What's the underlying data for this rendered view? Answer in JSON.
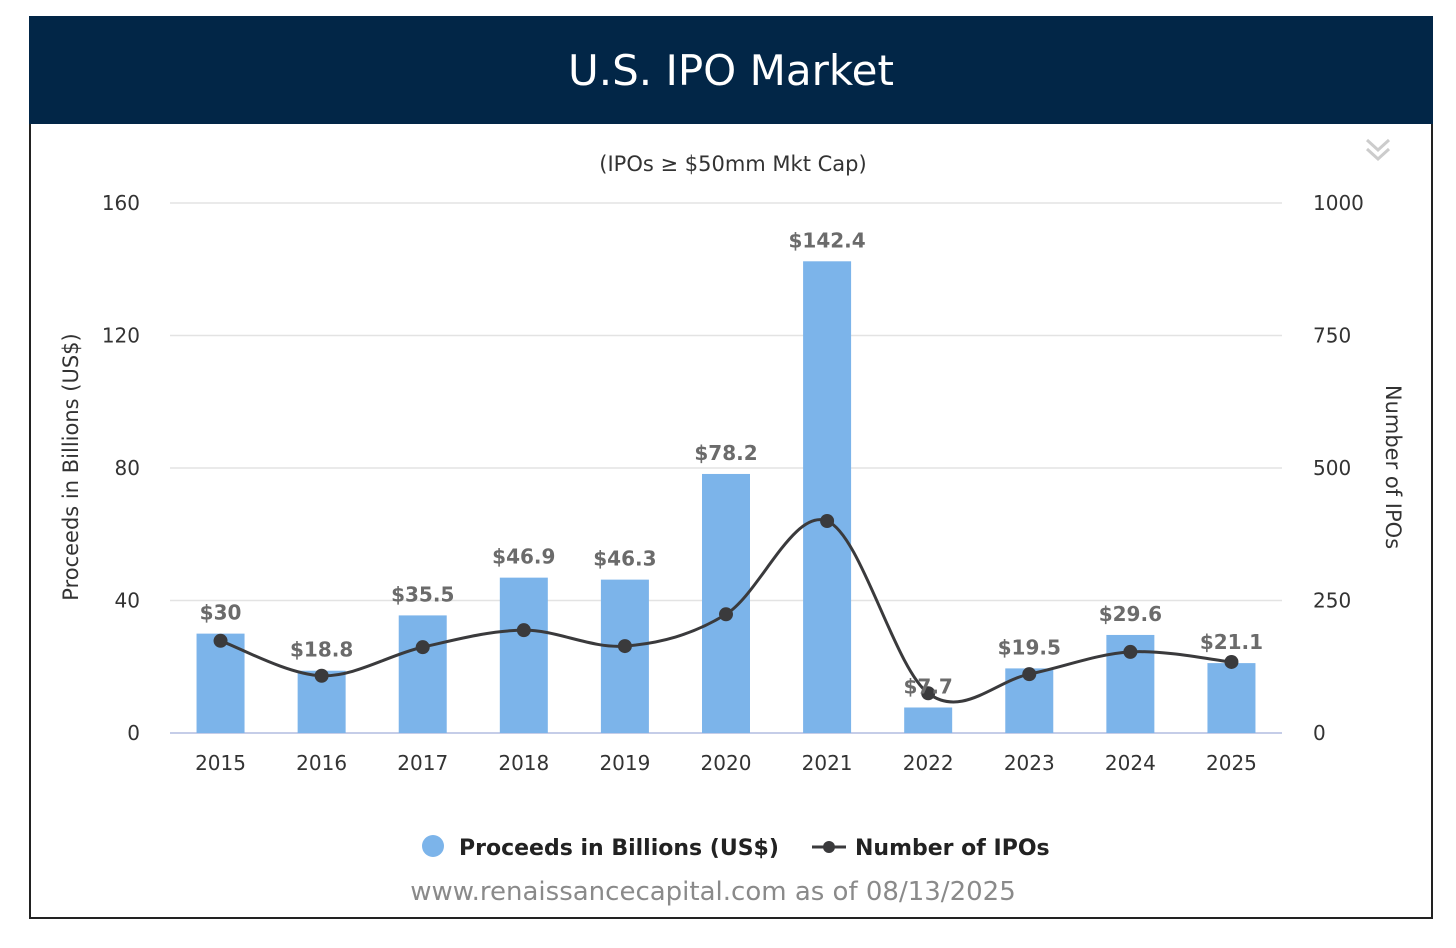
{
  "title": "U.S. IPO Market",
  "menu_icon": "double-chevron-down-icon",
  "colors": {
    "header": "#022647",
    "bar": "#7cb4ea",
    "line": "#3a3a3c",
    "grid": "#e3e3e3"
  },
  "chart_data": {
    "type": "bar+line",
    "title": "U.S. IPO Market",
    "subtitle": "(IPOs ≥ $50mm Mkt Cap)",
    "categories": [
      "2015",
      "2016",
      "2017",
      "2018",
      "2019",
      "2020",
      "2021",
      "2022",
      "2023",
      "2024",
      "2025"
    ],
    "series": [
      {
        "name": "Proceeds in Billions (US$)",
        "type": "bar",
        "axis": "left",
        "values": [
          30,
          18.8,
          35.5,
          46.9,
          46.3,
          78.2,
          142.4,
          7.7,
          19.5,
          29.6,
          21.1
        ],
        "labels": [
          "$30",
          "$18.8",
          "$35.5",
          "$46.9",
          "$46.3",
          "$78.2",
          "$142.4",
          "$7.7",
          "$19.5",
          "$29.6",
          "$21.1"
        ]
      },
      {
        "name": "Number of IPOs",
        "type": "line",
        "axis": "right",
        "values": [
          174,
          108,
          162,
          194,
          164,
          224,
          400,
          75,
          111,
          153,
          134
        ]
      }
    ],
    "ylabel": "Proceeds in Billions (US$)",
    "ylim": [
      0,
      160
    ],
    "yticks": [
      "0",
      "40",
      "80",
      "120",
      "160"
    ],
    "y2label": "Number of IPOs",
    "y2lim": [
      0,
      1000
    ],
    "y2ticks": [
      "0",
      "250",
      "500",
      "750",
      "1000"
    ],
    "legend_position": "bottom",
    "grid": true
  },
  "source": "www.renaissancecapital.com as of 08/13/2025"
}
